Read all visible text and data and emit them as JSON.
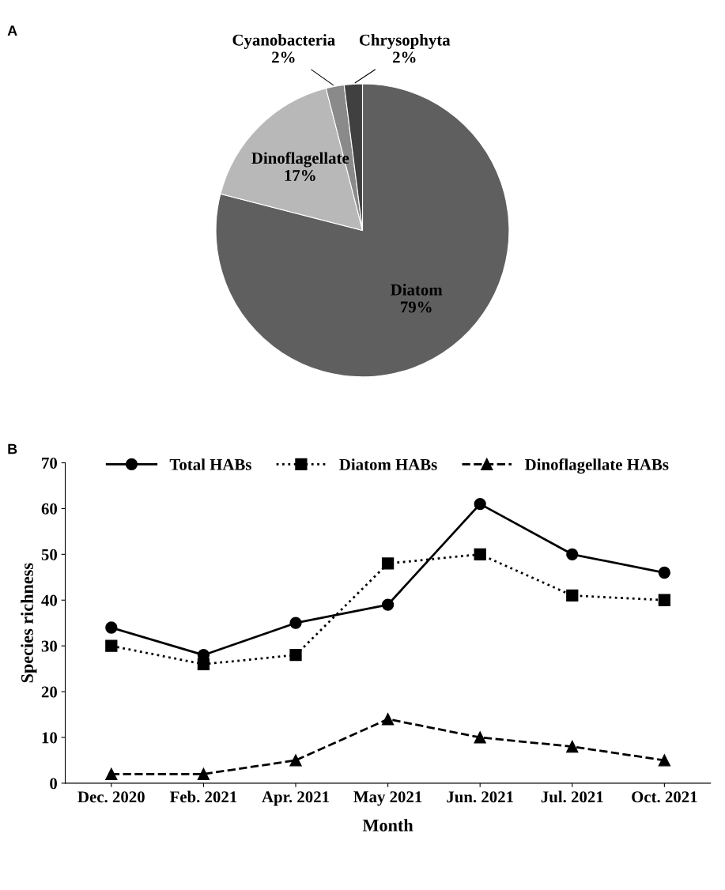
{
  "chart_data": [
    {
      "type": "pie",
      "title": "A",
      "categories": [
        "Diatom",
        "Dinoflagellate",
        "Cyanobacteria",
        "Chrysophyta"
      ],
      "values": [
        79,
        17,
        2,
        2
      ],
      "colors": [
        "#5f5f5f",
        "#b8b8b8",
        "#8a8a8a",
        "#404040"
      ],
      "value_labels": [
        "79%",
        "17%",
        "2%",
        "2%"
      ]
    },
    {
      "type": "line",
      "title": "B",
      "xlabel": "Month",
      "ylabel": "Species richness",
      "categories": [
        "Dec. 2020",
        "Feb. 2021",
        "Apr. 2021",
        "May 2021",
        "Jun. 2021",
        "Jul. 2021",
        "Oct. 2021"
      ],
      "series": [
        {
          "name": "Total HABs",
          "color": "#000000",
          "marker": "circle",
          "line_style": "solid",
          "values": [
            34,
            28,
            35,
            39,
            61,
            50,
            46
          ]
        },
        {
          "name": "Diatom HABs",
          "color": "#000000",
          "marker": "square",
          "line_style": "dotted",
          "values": [
            30,
            26,
            28,
            48,
            50,
            41,
            40
          ]
        },
        {
          "name": "Dinoflagellate HABs",
          "color": "#000000",
          "marker": "triangle",
          "line_style": "dashed",
          "values": [
            2,
            2,
            5,
            14,
            10,
            8,
            5
          ]
        }
      ],
      "ylim": [
        0,
        70
      ],
      "yticks": [
        0,
        10,
        20,
        30,
        40,
        50,
        60,
        70
      ],
      "grid": false,
      "legend": "top"
    }
  ]
}
